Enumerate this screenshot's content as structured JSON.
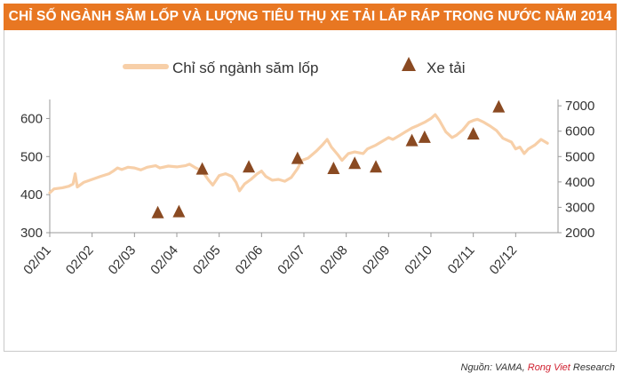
{
  "title": "CHỈ SỐ NGÀNH SĂM LỐP VÀ LƯỢNG TIÊU THỤ XE TẢI LẮP RÁP TRONG NƯỚC NĂM 2014",
  "source": {
    "prefix": "Nguồn: VAMA, ",
    "brand": "Rong Viet",
    "suffix": " Research",
    "brand_color": "#d0202f"
  },
  "colors": {
    "title_bg": "#e87722",
    "line": "#f7cfa8",
    "marker": "#8a4a22",
    "axis": "#999999"
  },
  "chart_data": {
    "type": "line",
    "categories": [
      "02/01",
      "02/02",
      "02/03",
      "02/04",
      "02/05",
      "02/06",
      "02/07",
      "02/08",
      "02/09",
      "02/10",
      "02/11",
      "02/12"
    ],
    "y_left": {
      "min": 300,
      "max": 650,
      "ticks": [
        300,
        400,
        500,
        600
      ]
    },
    "y_right": {
      "min": 2000,
      "max": 7250,
      "ticks": [
        2000,
        3000,
        4000,
        5000,
        6000,
        7000
      ]
    },
    "legend_position": "top",
    "grid": false,
    "series": [
      {
        "name": "Chỉ số ngành săm lốp",
        "kind": "line",
        "axis": "left",
        "points": [
          [
            0.0,
            405
          ],
          [
            0.1,
            415
          ],
          [
            0.3,
            418
          ],
          [
            0.45,
            422
          ],
          [
            0.55,
            428
          ],
          [
            0.6,
            455
          ],
          [
            0.65,
            420
          ],
          [
            0.8,
            432
          ],
          [
            1.0,
            440
          ],
          [
            1.2,
            448
          ],
          [
            1.4,
            455
          ],
          [
            1.5,
            462
          ],
          [
            1.6,
            470
          ],
          [
            1.7,
            466
          ],
          [
            1.85,
            472
          ],
          [
            2.0,
            470
          ],
          [
            2.15,
            465
          ],
          [
            2.3,
            472
          ],
          [
            2.5,
            476
          ],
          [
            2.6,
            470
          ],
          [
            2.8,
            475
          ],
          [
            3.0,
            473
          ],
          [
            3.2,
            476
          ],
          [
            3.3,
            480
          ],
          [
            3.45,
            470
          ],
          [
            3.6,
            462
          ],
          [
            3.75,
            438
          ],
          [
            3.85,
            425
          ],
          [
            4.0,
            450
          ],
          [
            4.15,
            455
          ],
          [
            4.3,
            448
          ],
          [
            4.4,
            432
          ],
          [
            4.48,
            410
          ],
          [
            4.6,
            428
          ],
          [
            4.75,
            440
          ],
          [
            4.9,
            455
          ],
          [
            5.0,
            462
          ],
          [
            5.1,
            448
          ],
          [
            5.25,
            438
          ],
          [
            5.4,
            440
          ],
          [
            5.55,
            435
          ],
          [
            5.7,
            445
          ],
          [
            5.85,
            468
          ],
          [
            5.95,
            490
          ],
          [
            6.1,
            496
          ],
          [
            6.3,
            515
          ],
          [
            6.45,
            532
          ],
          [
            6.55,
            545
          ],
          [
            6.65,
            525
          ],
          [
            6.8,
            505
          ],
          [
            6.9,
            490
          ],
          [
            7.05,
            508
          ],
          [
            7.2,
            512
          ],
          [
            7.4,
            508
          ],
          [
            7.5,
            520
          ],
          [
            7.7,
            530
          ],
          [
            7.85,
            540
          ],
          [
            8.0,
            550
          ],
          [
            8.1,
            545
          ],
          [
            8.25,
            555
          ],
          [
            8.4,
            565
          ],
          [
            8.55,
            575
          ],
          [
            8.7,
            582
          ],
          [
            8.85,
            590
          ],
          [
            9.0,
            600
          ],
          [
            9.1,
            610
          ],
          [
            9.2,
            595
          ],
          [
            9.35,
            565
          ],
          [
            9.5,
            550
          ],
          [
            9.6,
            556
          ],
          [
            9.75,
            570
          ],
          [
            9.9,
            590
          ],
          [
            10.0,
            595
          ],
          [
            10.1,
            598
          ],
          [
            10.25,
            590
          ],
          [
            10.4,
            580
          ],
          [
            10.55,
            568
          ],
          [
            10.7,
            548
          ],
          [
            10.9,
            538
          ],
          [
            11.0,
            520
          ],
          [
            11.1,
            525
          ],
          [
            11.2,
            508
          ],
          [
            11.3,
            520
          ],
          [
            11.45,
            530
          ],
          [
            11.6,
            545
          ],
          [
            11.75,
            535
          ]
        ]
      },
      {
        "name": "Xe tải",
        "kind": "scatter",
        "axis": "right",
        "points": [
          [
            2.55,
            2780
          ],
          [
            3.05,
            2820
          ],
          [
            3.6,
            4500
          ],
          [
            4.7,
            4580
          ],
          [
            5.85,
            4920
          ],
          [
            6.7,
            4520
          ],
          [
            7.2,
            4720
          ],
          [
            7.7,
            4580
          ],
          [
            8.55,
            5620
          ],
          [
            8.85,
            5750
          ],
          [
            10.0,
            5880
          ],
          [
            10.6,
            6950
          ]
        ]
      }
    ]
  }
}
